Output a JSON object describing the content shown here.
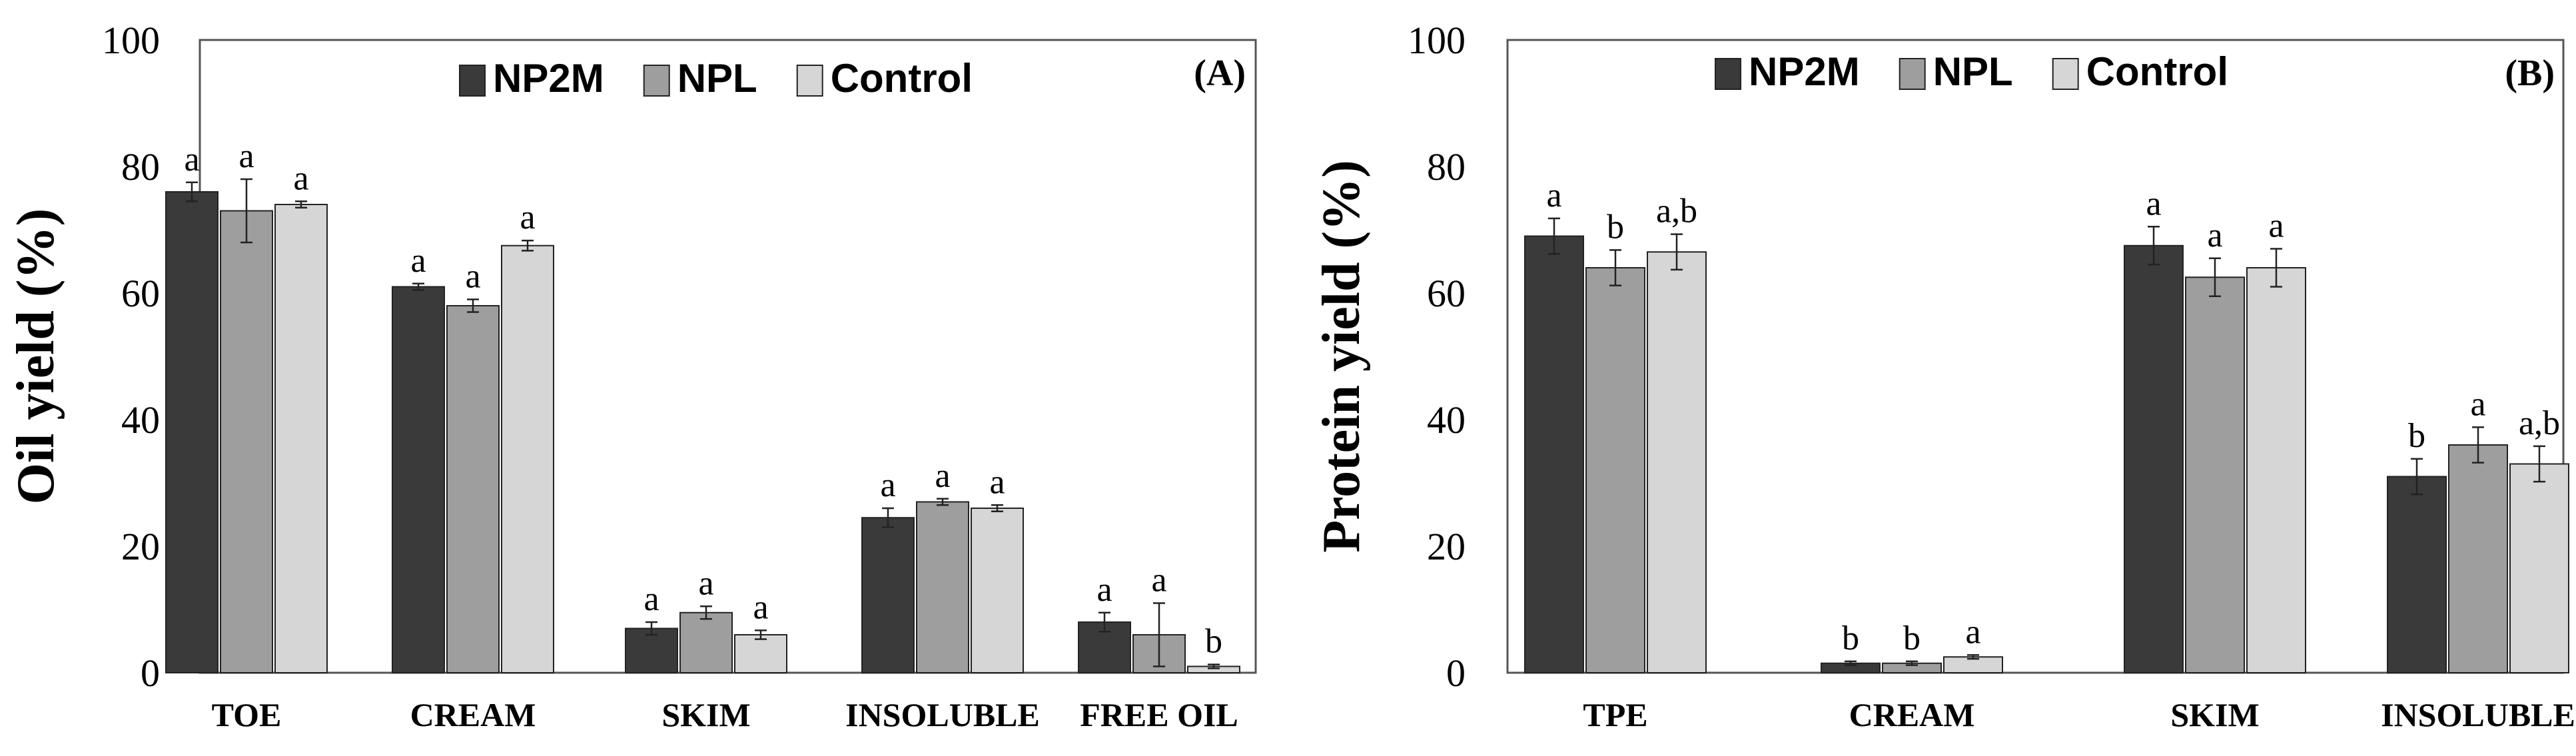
{
  "chart_data": [
    {
      "type": "bar",
      "panel_label": "(A)",
      "ylabel": "Oil yield (%)",
      "ylim": [
        0,
        100
      ],
      "yticks": [
        "0",
        "20",
        "40",
        "60",
        "80",
        "100"
      ],
      "categories": [
        "TOE",
        "CREAM",
        "SKIM",
        "INSOLUBLE",
        "FREE OIL"
      ],
      "legend": [
        "NP2M",
        "NPL",
        "Control"
      ],
      "colors": [
        "#3a3a3a",
        "#9e9e9e",
        "#d6d6d6"
      ],
      "series": [
        {
          "name": "NP2M",
          "values": [
            76,
            61,
            7,
            24.5,
            8
          ],
          "errors": [
            1.5,
            0.5,
            1,
            1.5,
            1.5
          ],
          "labels": [
            "a",
            "a",
            "a",
            "a",
            "a"
          ]
        },
        {
          "name": "NPL",
          "values": [
            73,
            58,
            9.5,
            27,
            6
          ],
          "errors": [
            5,
            1,
            1,
            0.5,
            5
          ],
          "labels": [
            "a",
            "a",
            "a",
            "a",
            "a"
          ]
        },
        {
          "name": "Control",
          "values": [
            74,
            67.5,
            6,
            26,
            1
          ],
          "errors": [
            0.5,
            0.8,
            0.7,
            0.5,
            0.3
          ],
          "labels": [
            "a",
            "a",
            "a",
            "a",
            "b"
          ]
        }
      ]
    },
    {
      "type": "bar",
      "panel_label": "(B)",
      "ylabel": "Protein yield (%)",
      "ylim": [
        0,
        100
      ],
      "yticks": [
        "0",
        "20",
        "40",
        "60",
        "80",
        "100"
      ],
      "categories": [
        "TPE",
        "CREAM",
        "SKIM",
        "INSOLUBLE"
      ],
      "legend": [
        "NP2M",
        "NPL",
        "Control"
      ],
      "colors": [
        "#3a3a3a",
        "#9e9e9e",
        "#d6d6d6"
      ],
      "series": [
        {
          "name": "NP2M",
          "values": [
            69,
            1.5,
            67.5,
            31
          ],
          "errors": [
            2.8,
            0.3,
            3,
            2.8
          ],
          "labels": [
            "a",
            "b",
            "a",
            "b"
          ]
        },
        {
          "name": "NPL",
          "values": [
            64,
            1.5,
            62.5,
            36
          ],
          "errors": [
            2.8,
            0.3,
            3,
            2.8
          ],
          "labels": [
            "b",
            "b",
            "a",
            "a"
          ]
        },
        {
          "name": "Control",
          "values": [
            66.5,
            2.5,
            64,
            33
          ],
          "errors": [
            2.8,
            0.3,
            3,
            2.8
          ],
          "labels": [
            "a,b",
            "a",
            "a",
            "a,b"
          ]
        }
      ]
    }
  ]
}
